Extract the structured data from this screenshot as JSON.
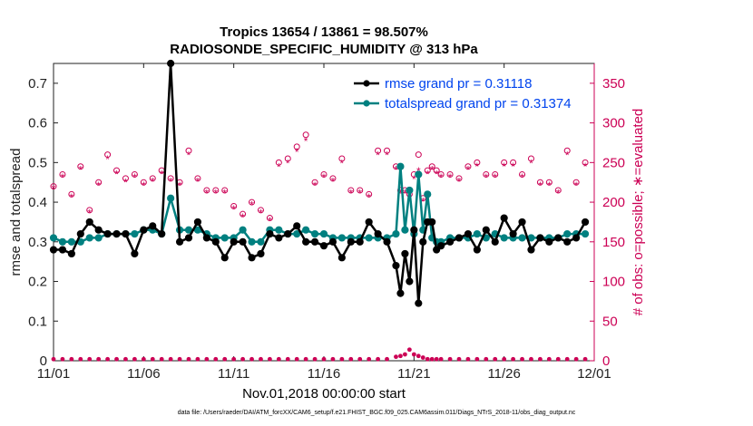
{
  "title_line1": "Tropics 13654 / 13861 = 98.507%",
  "title_line2": "RADIOSONDE_SPECIFIC_HUMIDITY @ 313 hPa",
  "xlabel": "Nov.01,2018 00:00:00 start",
  "footer": "data file: /Users/raeder/DAI/ATM_forcXX/CAM6_setup/f.e21.FHIST_BGC.f09_025.CAM6assim.011/Diags_NTrS_2018-11/obs_diag_output.nc",
  "colors": {
    "rmse": "#000000",
    "spread": "#008080",
    "obs": "#cc0055",
    "legend_text": "#0044ee"
  },
  "chart_data": {
    "type": "line",
    "title": "Tropics 13654 / 13861 = 98.507% — RADIOSONDE_SPECIFIC_HUMIDITY @ 313 hPa",
    "xlabel": "Nov.01,2018 00:00:00 start",
    "ylabel": "rmse and totalspread",
    "ylabel_right": "# of obs: o=possible; ∗=evaluated",
    "xlim": [
      0,
      30
    ],
    "ylim": [
      0,
      0.75
    ],
    "ylim_right": [
      0,
      375
    ],
    "x_ticks": [
      0,
      5,
      10,
      15,
      20,
      25,
      30
    ],
    "x_tick_labels": [
      "11/01",
      "11/06",
      "11/11",
      "11/16",
      "11/21",
      "11/26",
      "12/01"
    ],
    "y_ticks": [
      0,
      0.1,
      0.2,
      0.3,
      0.4,
      0.5,
      0.6,
      0.7
    ],
    "y_tick_labels": [
      "0",
      "0.1",
      "0.2",
      "0.3",
      "0.4",
      "0.5",
      "0.6",
      "0.7"
    ],
    "y_ticks_right": [
      0,
      50,
      100,
      150,
      200,
      250,
      300,
      350
    ],
    "y_tick_labels_right": [
      "0",
      "50",
      "100",
      "150",
      "200",
      "250",
      "300",
      "350"
    ],
    "legend": [
      {
        "name": "rmse",
        "label": "rmse grand pr = 0.31118"
      },
      {
        "name": "totalspread",
        "label": "totalspread grand pr = 0.31374"
      }
    ],
    "series": [
      {
        "name": "rmse",
        "x": [
          0,
          0.5,
          1,
          1.5,
          2,
          2.5,
          3,
          3.5,
          4,
          4.5,
          5,
          5.5,
          6,
          6.5,
          7,
          7.5,
          8,
          8.5,
          9,
          9.5,
          10,
          10.5,
          11,
          11.5,
          12,
          12.5,
          13,
          13.5,
          14,
          14.5,
          15,
          15.5,
          16,
          16.5,
          17,
          17.5,
          18,
          18.5,
          19,
          19.25,
          19.5,
          19.75,
          20,
          20.25,
          20.5,
          20.75,
          21,
          21.25,
          21.5,
          22,
          22.5,
          23,
          23.5,
          24,
          24.5,
          25,
          25.5,
          26,
          26.5,
          27,
          27.5,
          28,
          28.5,
          29,
          29.5
        ],
        "y": [
          0.28,
          0.28,
          0.27,
          0.32,
          0.35,
          0.33,
          0.32,
          0.32,
          0.32,
          0.27,
          0.33,
          0.34,
          0.32,
          0.75,
          0.3,
          0.31,
          0.35,
          0.31,
          0.3,
          0.26,
          0.3,
          0.3,
          0.26,
          0.27,
          0.32,
          0.31,
          0.32,
          0.34,
          0.3,
          0.3,
          0.29,
          0.3,
          0.26,
          0.3,
          0.3,
          0.35,
          0.32,
          0.3,
          0.24,
          0.17,
          0.27,
          0.2,
          0.33,
          0.145,
          0.3,
          0.35,
          0.35,
          0.28,
          0.29,
          0.3,
          0.31,
          0.32,
          0.28,
          0.33,
          0.3,
          0.36,
          0.32,
          0.35,
          0.28,
          0.31,
          0.3,
          0.31,
          0.3,
          0.31,
          0.35
        ]
      },
      {
        "name": "totalspread",
        "x": [
          0,
          0.5,
          1,
          1.5,
          2,
          2.5,
          3,
          3.5,
          4,
          4.5,
          5,
          5.5,
          6,
          6.5,
          7,
          7.5,
          8,
          8.5,
          9,
          9.5,
          10,
          10.5,
          11,
          11.5,
          12,
          12.5,
          13,
          13.5,
          14,
          14.5,
          15,
          15.5,
          16,
          16.5,
          17,
          17.5,
          18,
          18.5,
          19,
          19.25,
          19.5,
          19.75,
          20,
          20.25,
          20.5,
          20.75,
          21,
          21.25,
          21.5,
          22,
          22.5,
          23,
          23.5,
          24,
          24.5,
          25,
          25.5,
          26,
          26.5,
          27,
          27.5,
          28,
          28.5,
          29,
          29.5
        ],
        "y": [
          0.31,
          0.3,
          0.3,
          0.3,
          0.31,
          0.31,
          0.32,
          0.32,
          0.32,
          0.32,
          0.33,
          0.33,
          0.32,
          0.41,
          0.33,
          0.33,
          0.33,
          0.32,
          0.31,
          0.31,
          0.31,
          0.33,
          0.3,
          0.3,
          0.33,
          0.33,
          0.32,
          0.32,
          0.33,
          0.32,
          0.32,
          0.31,
          0.31,
          0.31,
          0.31,
          0.31,
          0.31,
          0.31,
          0.32,
          0.49,
          0.33,
          0.43,
          0.32,
          0.47,
          0.33,
          0.42,
          0.31,
          0.3,
          0.3,
          0.31,
          0.31,
          0.31,
          0.32,
          0.31,
          0.32,
          0.31,
          0.31,
          0.31,
          0.31,
          0.31,
          0.31,
          0.31,
          0.32,
          0.32,
          0.32
        ]
      },
      {
        "name": "obs_possible",
        "x": [
          0,
          0.5,
          1,
          1.5,
          2,
          2.5,
          3,
          3.5,
          4,
          4.5,
          5,
          5.5,
          6,
          6.5,
          7,
          7.5,
          8,
          8.5,
          9,
          9.5,
          10,
          10.5,
          11,
          11.5,
          12,
          12.5,
          13,
          13.5,
          14,
          14.5,
          15,
          15.5,
          16,
          16.5,
          17,
          17.5,
          18,
          18.5,
          19,
          19.25,
          19.5,
          19.75,
          20,
          20.25,
          20.5,
          20.75,
          21,
          21.25,
          21.5,
          22,
          22.5,
          23,
          23.5,
          24,
          24.5,
          25,
          25.5,
          26,
          26.5,
          27,
          27.5,
          28,
          28.5,
          29,
          29.5
        ],
        "y": [
          220,
          235,
          210,
          245,
          190,
          225,
          260,
          240,
          230,
          235,
          225,
          230,
          240,
          230,
          225,
          265,
          230,
          215,
          215,
          215,
          195,
          185,
          200,
          190,
          180,
          250,
          255,
          270,
          285,
          225,
          235,
          230,
          255,
          215,
          215,
          210,
          265,
          265,
          245,
          215,
          215,
          210,
          235,
          260,
          205,
          240,
          245,
          240,
          235,
          235,
          230,
          245,
          250,
          235,
          235,
          250,
          250,
          235,
          255,
          225,
          225,
          215,
          265,
          225,
          250
        ]
      },
      {
        "name": "obs_evaluated",
        "x": [
          0,
          0.5,
          1,
          1.5,
          2,
          2.5,
          3,
          3.5,
          4,
          4.5,
          5,
          5.5,
          6,
          6.5,
          7,
          7.5,
          8,
          8.5,
          9,
          9.5,
          10,
          10.5,
          11,
          11.5,
          12,
          12.5,
          13,
          13.5,
          14,
          14.5,
          15,
          15.5,
          16,
          16.5,
          17,
          17.5,
          18,
          18.5,
          19,
          19.25,
          19.5,
          19.75,
          20,
          20.25,
          20.5,
          20.75,
          21,
          21.25,
          21.5,
          22,
          22.5,
          23,
          23.5,
          24,
          24.5,
          25,
          25.5,
          26,
          26.5,
          27,
          27.5,
          28,
          28.5,
          29,
          29.5
        ],
        "y": [
          218,
          232,
          207,
          242,
          187,
          222,
          255,
          236,
          226,
          232,
          222,
          227,
          236,
          227,
          222,
          260,
          227,
          212,
          212,
          212,
          192,
          182,
          197,
          187,
          177,
          245,
          250,
          264,
          278,
          222,
          232,
          227,
          250,
          212,
          212,
          207,
          260,
          260,
          242,
          212,
          212,
          207,
          230,
          240,
          202,
          236,
          242,
          236,
          232,
          232,
          227,
          242,
          246,
          232,
          232,
          246,
          246,
          232,
          250,
          222,
          222,
          212,
          260,
          222,
          246
        ]
      },
      {
        "name": "obs_rejected_near_zero",
        "x": [
          0,
          0.5,
          1,
          1.5,
          2,
          2.5,
          3,
          3.5,
          4,
          4.5,
          5,
          5.5,
          6,
          6.5,
          7,
          7.5,
          8,
          8.5,
          9,
          9.5,
          10,
          10.5,
          11,
          11.5,
          12,
          12.5,
          13,
          13.5,
          14,
          14.5,
          15,
          15.5,
          16,
          16.5,
          17,
          17.5,
          18,
          18.5,
          19,
          19.25,
          19.5,
          19.75,
          20,
          20.25,
          20.5,
          20.75,
          21,
          21.25,
          21.5,
          22,
          22.5,
          23,
          23.5,
          24,
          24.5,
          25,
          25.5,
          26,
          26.5,
          27,
          27.5,
          28,
          28.5,
          29,
          29.5
        ],
        "y": [
          2,
          2,
          2,
          2,
          2,
          2,
          2,
          2,
          2,
          2,
          2,
          2,
          2,
          2,
          2,
          2,
          2,
          2,
          2,
          2,
          2,
          2,
          2,
          2,
          2,
          2,
          2,
          2,
          2,
          2,
          2,
          2,
          2,
          2,
          2,
          2,
          2,
          2,
          5,
          6,
          8,
          14,
          8,
          6,
          4,
          2,
          2,
          2,
          2,
          2,
          2,
          2,
          2,
          2,
          2,
          2,
          2,
          2,
          2,
          2,
          2,
          2,
          2,
          2,
          2
        ]
      }
    ]
  }
}
